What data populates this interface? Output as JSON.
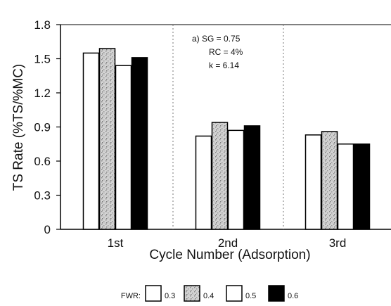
{
  "chart_data": {
    "type": "bar",
    "xlabel": "Cycle Number (Adsorption)",
    "ylabel": "TS Rate (%TS/%MC)",
    "ylim": [
      0,
      1.8
    ],
    "yticks": [
      "0",
      "0.3",
      "0.6",
      "0.9",
      "1.2",
      "1.5",
      "1.8"
    ],
    "categories": [
      "1st",
      "2nd",
      "3rd"
    ],
    "series": [
      {
        "name": "0.3",
        "values": [
          1.55,
          0.82,
          0.83
        ]
      },
      {
        "name": "0.4",
        "values": [
          1.59,
          0.94,
          0.86
        ]
      },
      {
        "name": "0.5",
        "values": [
          1.44,
          0.87,
          0.75
        ]
      },
      {
        "name": "0.6",
        "values": [
          1.51,
          0.91,
          0.75
        ]
      }
    ],
    "series_fills": [
      "#ffffff",
      "speckle",
      "#ffffff",
      "#000000"
    ],
    "annotation": {
      "line1": "a)  SG = 0.75",
      "line2": "RC = 4%",
      "line3": "k = 6.14"
    },
    "legend_title": "FWR:",
    "legend_position": "bottom-center",
    "grid": false,
    "group_dividers": "dotted vertical lines"
  }
}
